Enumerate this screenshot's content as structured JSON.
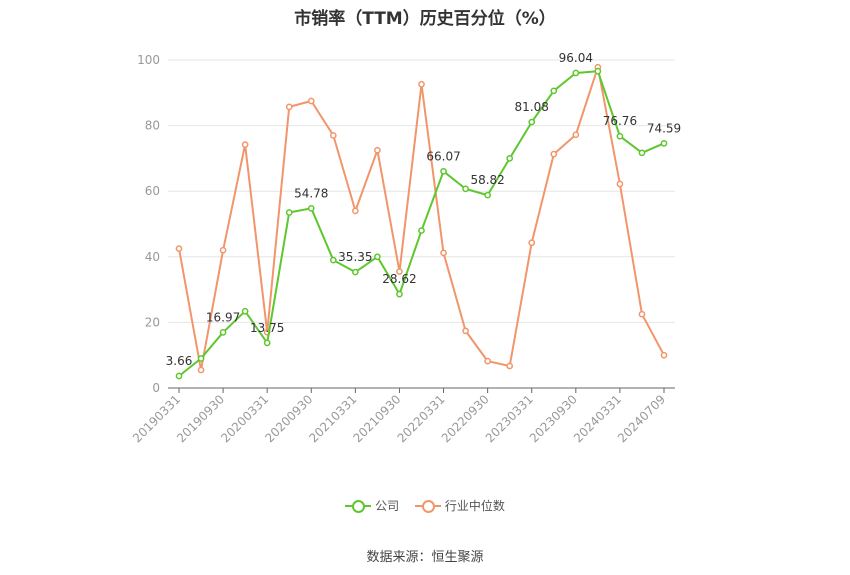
{
  "chart_data": {
    "type": "line",
    "title": "市销率（TTM）历史百分位（%）",
    "xlabel": "",
    "ylabel": "",
    "ylim": [
      0,
      100
    ],
    "yticks": [
      0,
      20,
      40,
      60,
      80,
      100
    ],
    "x": [
      "20190331",
      "20190630",
      "20190930",
      "20191231",
      "20200331",
      "20200630",
      "20200930",
      "20201231",
      "20210331",
      "20210630",
      "20210930",
      "20211231",
      "20220331",
      "20220630",
      "20220930",
      "20221231",
      "20230331",
      "20230630",
      "20230930",
      "20231231",
      "20240331",
      "20240630",
      "20240709"
    ],
    "xtick_labels": [
      "20190331",
      "20190930",
      "20200331",
      "20200930",
      "20210331",
      "20210930",
      "20220331",
      "20220930",
      "20230331",
      "20230930",
      "20240331",
      "20240709"
    ],
    "series": [
      {
        "name": "公司",
        "color": "#5ec72e",
        "values": [
          3.66,
          9.0,
          16.97,
          23.4,
          13.75,
          53.5,
          54.78,
          39.0,
          35.35,
          40.0,
          28.62,
          48.0,
          66.07,
          60.7,
          58.82,
          70.0,
          81.08,
          90.6,
          96.04,
          96.6,
          76.76,
          71.7,
          74.59
        ],
        "labels": {
          "0": "3.66",
          "2": "16.97",
          "4": "13.75",
          "6": "54.78",
          "8": "35.35",
          "10": "28.62",
          "12": "66.07",
          "14": "58.82",
          "16": "81.08",
          "18": "96.04",
          "20": "76.76",
          "22": "74.59"
        }
      },
      {
        "name": "行业中位数",
        "color": "#f2956a",
        "values": [
          42.5,
          5.5,
          42.0,
          74.2,
          17.0,
          85.7,
          87.5,
          77.0,
          54.0,
          72.5,
          35.5,
          92.6,
          41.2,
          17.4,
          8.2,
          6.7,
          44.3,
          71.3,
          77.2,
          97.8,
          62.2,
          22.5,
          10.0
        ],
        "labels": {}
      }
    ],
    "legend_position": "bottom-center",
    "grid": true
  },
  "source": "数据来源：恒生聚源"
}
